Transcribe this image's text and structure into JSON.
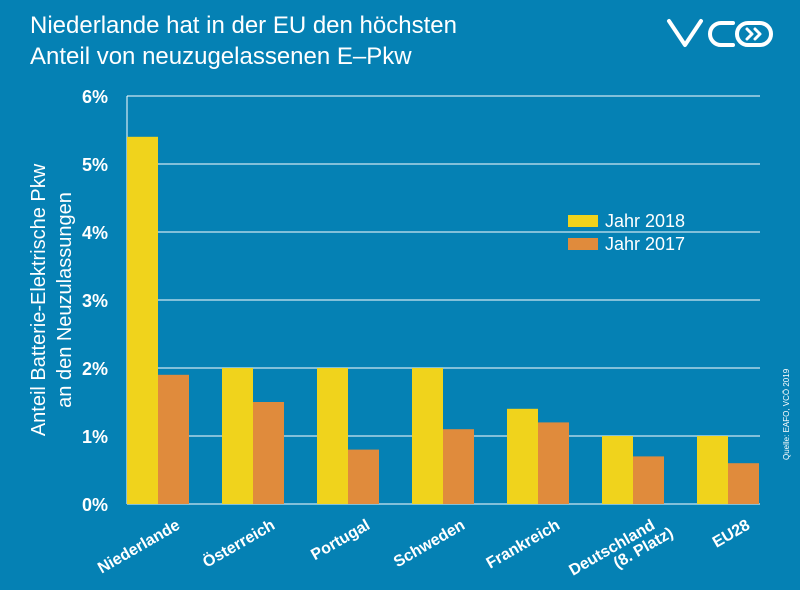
{
  "title": {
    "line1": "Niederlande hat in der EU den höchsten",
    "line2": "Anteil von neuzugelassenen E–Pkw"
  },
  "logo": {
    "text": "VCÖ"
  },
  "source": "Quelle: EAFO, VCÖ 2019",
  "colors": {
    "background": "#0581b4",
    "series_2018": "#f0d31c",
    "series_2017": "#e08b3c"
  },
  "chart_data": {
    "type": "bar",
    "ylabel_line1": "Anteil Batterie-Elektrische  Pkw",
    "ylabel_line2": "an den Neuzulassungen",
    "ylim": [
      0,
      6
    ],
    "yticks": [
      "0%",
      "1%",
      "2%",
      "3%",
      "4%",
      "5%",
      "6%"
    ],
    "grid": true,
    "legend": "right",
    "categories": [
      "Niederlande",
      "Österreich",
      "Portugal",
      "Schweden",
      "Frankreich",
      "Deutschland\n(8. Platz)",
      "EU28"
    ],
    "series": [
      {
        "name": "Jahr 2018",
        "values": [
          5.4,
          2.0,
          2.0,
          2.0,
          1.4,
          1.0,
          1.0
        ]
      },
      {
        "name": "Jahr 2017",
        "values": [
          1.9,
          1.5,
          0.8,
          1.1,
          1.2,
          0.7,
          0.6
        ]
      }
    ]
  }
}
